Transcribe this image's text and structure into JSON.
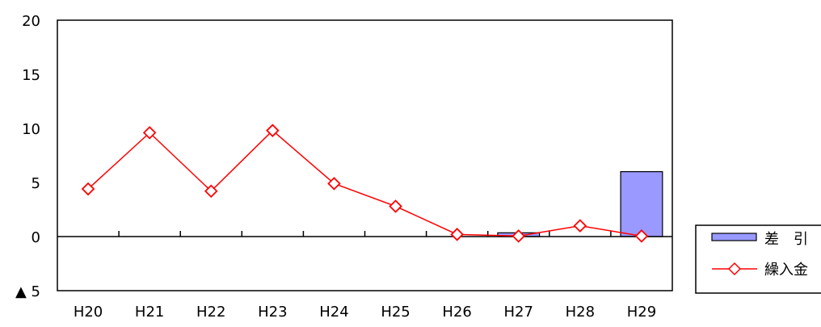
{
  "chart_data": {
    "type": "bar",
    "categories": [
      "H20",
      "H21",
      "H22",
      "H23",
      "H24",
      "H25",
      "H26",
      "H27",
      "H28",
      "H29"
    ],
    "ylim": [
      -5,
      20
    ],
    "yticks": [
      {
        "value": 20,
        "label": "20"
      },
      {
        "value": 15,
        "label": "15"
      },
      {
        "value": 10,
        "label": "10"
      },
      {
        "value": 5,
        "label": "5"
      },
      {
        "value": 0,
        "label": "0"
      },
      {
        "value": -5,
        "label": "▲ 5"
      }
    ],
    "grid": false,
    "legend_position": "right",
    "series": [
      {
        "name": "差　引",
        "type": "bar",
        "color": "#9999FF",
        "values": [
          0,
          0,
          0,
          0,
          0,
          0,
          0,
          0.35,
          0,
          6.0
        ]
      },
      {
        "name": "繰入金",
        "type": "line",
        "color": "#FF0000",
        "marker": "diamond",
        "values": [
          4.4,
          9.6,
          4.2,
          9.8,
          4.9,
          2.8,
          0.2,
          0.05,
          1.0,
          0.05
        ]
      }
    ]
  }
}
